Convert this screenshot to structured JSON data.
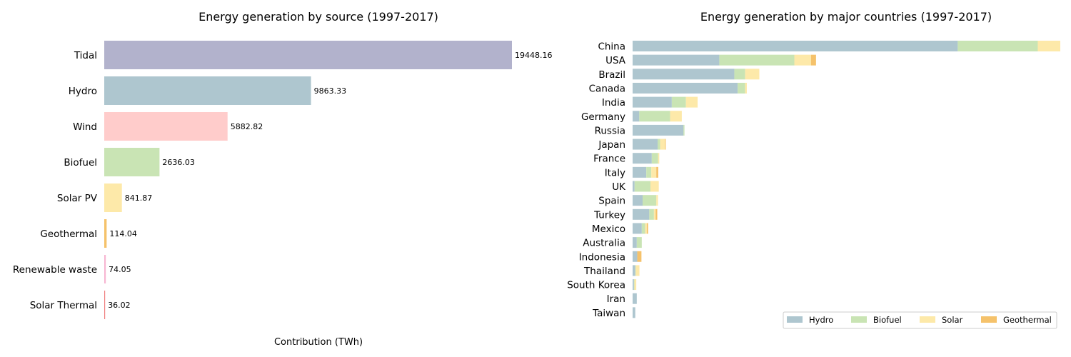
{
  "chart_data": [
    {
      "type": "bar",
      "orientation": "horizontal",
      "title": "Energy generation by source (1997-2017)",
      "xlabel": "Contribution (TWh)",
      "ylabel": "",
      "categories": [
        "Tidal",
        "Hydro",
        "Wind",
        "Biofuel",
        "Solar PV",
        "Geothermal",
        "Renewable waste",
        "Solar Thermal"
      ],
      "values": [
        19448.16,
        9863.33,
        5882.82,
        2636.03,
        841.87,
        114.04,
        74.05,
        36.02
      ],
      "value_labels": [
        "19448.16",
        "9863.33",
        "5882.82",
        "2636.03",
        "841.87",
        "114.04",
        "74.05",
        "36.02"
      ],
      "colors": [
        "#b2b2cc",
        "#aec6cf",
        "#ffcccb",
        "#c9e4b4",
        "#fde9a9",
        "#f5c26b",
        "#f7b6d2",
        "#f08080"
      ],
      "xlim": [
        0,
        19448.16
      ],
      "grid": false
    },
    {
      "type": "bar",
      "orientation": "horizontal",
      "stacked": true,
      "title": "Energy generation by major countries (1997-2017)",
      "xlabel": "",
      "ylabel": "",
      "categories": [
        "China",
        "USA",
        "Brazil",
        "Canada",
        "India",
        "Germany",
        "Russia",
        "Japan",
        "France",
        "Italy",
        "UK",
        "Spain",
        "Turkey",
        "Mexico",
        "Australia",
        "Indonesia",
        "Thailand",
        "South Korea",
        "Iran",
        "Taiwan"
      ],
      "series": [
        {
          "name": "Hydro",
          "color": "#aec6cf",
          "values": [
            19500,
            5200,
            6100,
            6300,
            2350,
            400,
            3050,
            1500,
            1150,
            820,
            120,
            600,
            1000,
            550,
            250,
            280,
            160,
            80,
            250,
            160
          ]
        },
        {
          "name": "Biofuel",
          "color": "#c9e4b4",
          "values": [
            4800,
            4500,
            650,
            450,
            850,
            1850,
            60,
            150,
            380,
            300,
            950,
            820,
            280,
            200,
            300,
            0,
            30,
            30,
            0,
            0
          ]
        },
        {
          "name": "Solar",
          "color": "#fde9a9",
          "values": [
            1350,
            1000,
            850,
            100,
            700,
            700,
            0,
            300,
            70,
            300,
            500,
            100,
            100,
            100,
            0,
            0,
            220,
            110,
            0,
            0
          ]
        },
        {
          "name": "Geothermal",
          "color": "#f5c26b",
          "values": [
            0,
            300,
            0,
            0,
            0,
            0,
            0,
            40,
            0,
            120,
            0,
            0,
            100,
            80,
            0,
            250,
            0,
            0,
            0,
            0
          ]
        }
      ],
      "xlim": [
        0,
        25650
      ],
      "legend": {
        "placement": "lower-right",
        "columns": 4
      },
      "grid": false
    }
  ]
}
